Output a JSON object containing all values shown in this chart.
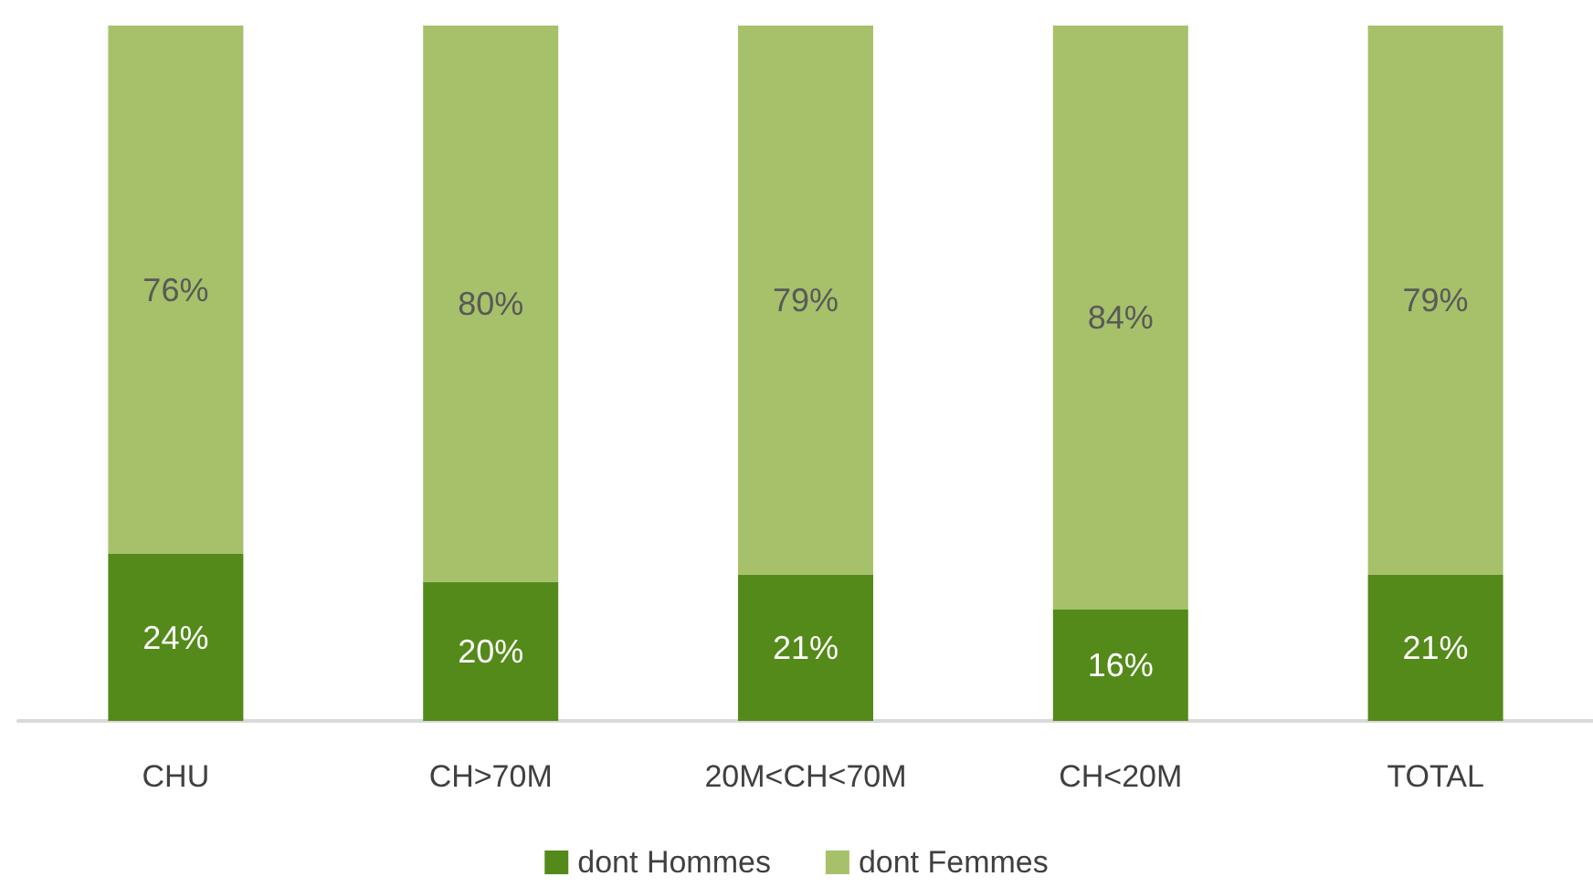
{
  "chart_data": {
    "type": "bar",
    "stacked": true,
    "legend": "bottom",
    "categories": [
      "CHU",
      "CH>70M",
      "20M<CH<70M",
      "CH<20M",
      "TOTAL"
    ],
    "series": [
      {
        "name": "dont Hommes",
        "color": "#548a1a",
        "values": [
          24,
          20,
          21,
          16,
          21
        ],
        "value_labels": [
          "24%",
          "20%",
          "21%",
          "16%",
          "21%"
        ]
      },
      {
        "name": "dont Femmes",
        "color": "#a6c16a",
        "values": [
          76,
          80,
          79,
          84,
          79
        ],
        "value_labels": [
          "76%",
          "80%",
          "79%",
          "84%",
          "79%"
        ]
      }
    ]
  }
}
